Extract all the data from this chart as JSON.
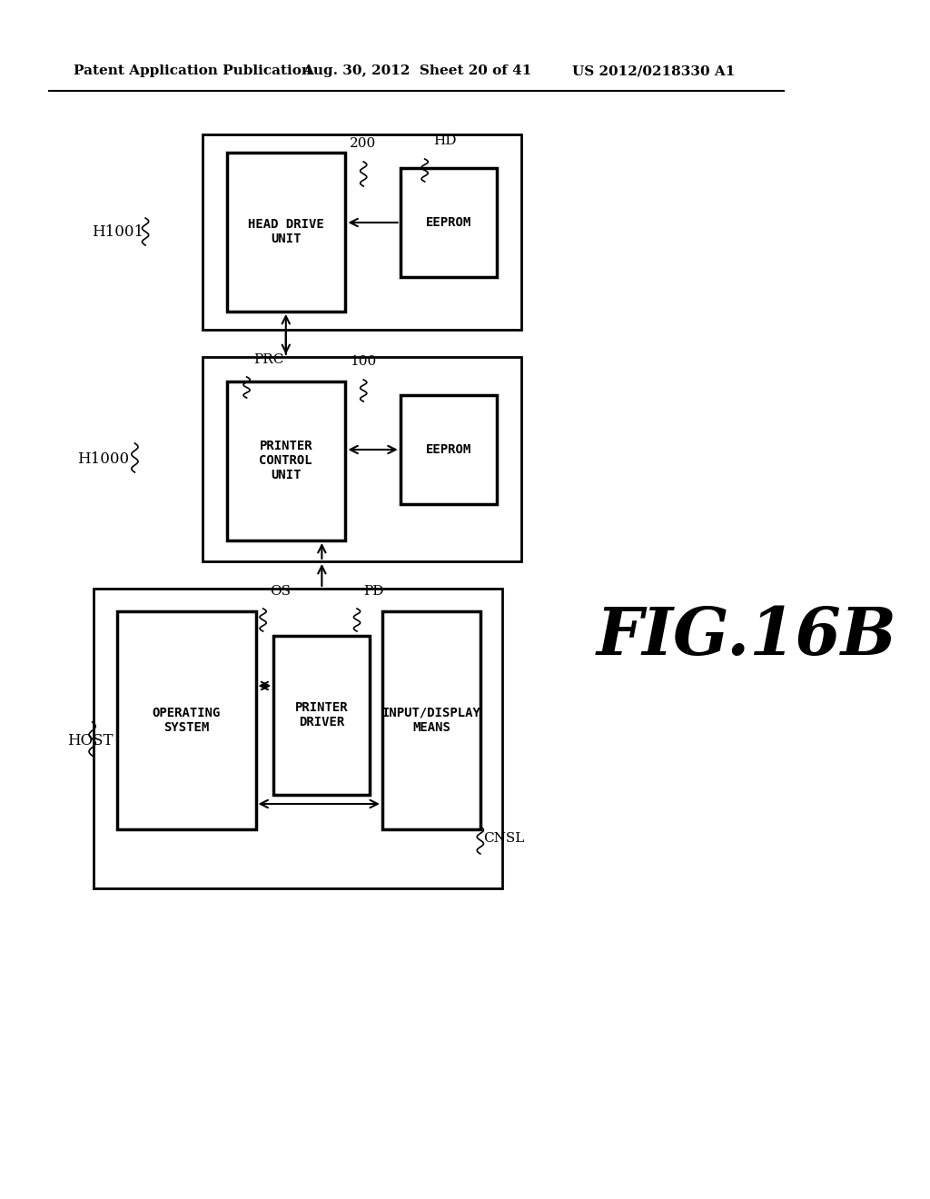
{
  "title_left": "Patent Application Publication",
  "title_mid": "Aug. 30, 2012  Sheet 20 of 41",
  "title_right": "US 2012/0218330 A1",
  "fig_label": "FIG.16B",
  "background_color": "#ffffff"
}
